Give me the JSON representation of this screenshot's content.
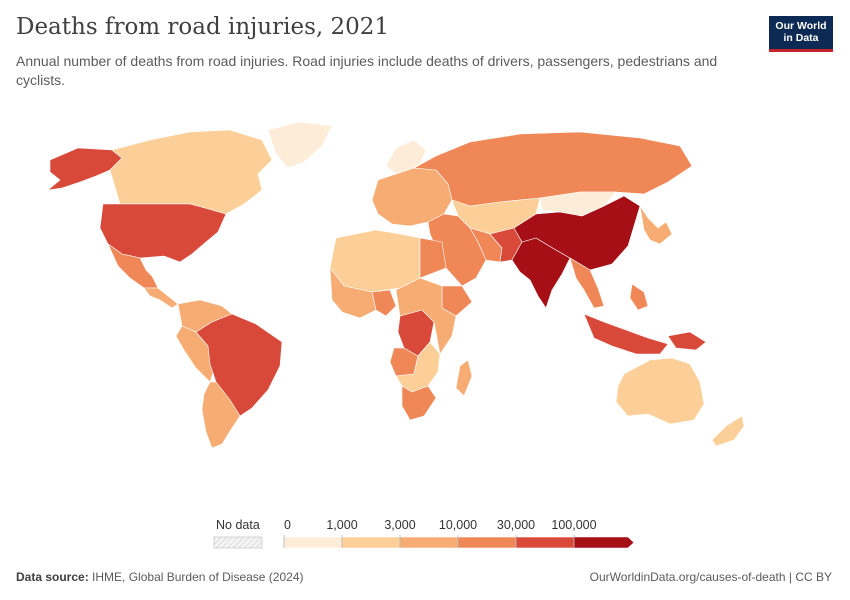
{
  "header": {
    "title": "Deaths from road injuries, 2021",
    "subtitle": "Annual number of deaths from road injuries. Road injuries include deaths of drivers, passengers, pedestrians and cyclists.",
    "logo_line1": "Our World",
    "logo_line2": "in Data"
  },
  "legend": {
    "no_data_label": "No data",
    "no_data_color": "#f2f2f2",
    "bins": [
      {
        "label": "0",
        "color": "#fdecd7"
      },
      {
        "label": "1,000",
        "color": "#fbcf97"
      },
      {
        "label": "3,000",
        "color": "#f6ac72"
      },
      {
        "label": "10,000",
        "color": "#f08757"
      },
      {
        "label": "30,000",
        "color": "#d9493a"
      },
      {
        "label": "100,000",
        "color": "#a50f15"
      }
    ]
  },
  "regions": [
    {
      "name": "Alaska",
      "color": "#d9493a"
    },
    {
      "name": "Canada",
      "color": "#fbcf97"
    },
    {
      "name": "Greenland",
      "color": "#fdecd7"
    },
    {
      "name": "United States",
      "color": "#d9493a"
    },
    {
      "name": "Mexico",
      "color": "#f08757"
    },
    {
      "name": "Central America",
      "color": "#f6ac72"
    },
    {
      "name": "Colombia Venezuela",
      "color": "#f6ac72"
    },
    {
      "name": "Peru Bolivia",
      "color": "#f6ac72"
    },
    {
      "name": "Brazil",
      "color": "#d9493a"
    },
    {
      "name": "Argentina Chile",
      "color": "#f6ac72"
    },
    {
      "name": "Europe",
      "color": "#f6ac72"
    },
    {
      "name": "Scandinavia",
      "color": "#fdecd7"
    },
    {
      "name": "Russia",
      "color": "#f08757"
    },
    {
      "name": "Kazakhstan Central Asia",
      "color": "#fbcf97"
    },
    {
      "name": "Turkey Middle East",
      "color": "#f08757"
    },
    {
      "name": "Iran",
      "color": "#f08757"
    },
    {
      "name": "Pakistan",
      "color": "#d9493a"
    },
    {
      "name": "India",
      "color": "#a50f15"
    },
    {
      "name": "China",
      "color": "#a50f15"
    },
    {
      "name": "Mongolia",
      "color": "#fdecd7"
    },
    {
      "name": "Southeast Asia",
      "color": "#f08757"
    },
    {
      "name": "Japan Korea",
      "color": "#f6ac72"
    },
    {
      "name": "Indonesia",
      "color": "#d9493a"
    },
    {
      "name": "Philippines",
      "color": "#f08757"
    },
    {
      "name": "Australia",
      "color": "#fbcf97"
    },
    {
      "name": "New Zealand",
      "color": "#fbcf97"
    },
    {
      "name": "Papua New Guinea",
      "color": "#d9493a"
    },
    {
      "name": "North Africa",
      "color": "#fbcf97"
    },
    {
      "name": "Egypt",
      "color": "#f08757"
    },
    {
      "name": "West Africa",
      "color": "#f6ac72"
    },
    {
      "name": "Nigeria",
      "color": "#f08757"
    },
    {
      "name": "Ethiopia",
      "color": "#f08757"
    },
    {
      "name": "DR Congo",
      "color": "#d9493a"
    },
    {
      "name": "Angola",
      "color": "#f08757"
    },
    {
      "name": "East Africa",
      "color": "#f6ac72"
    },
    {
      "name": "Southern Africa",
      "color": "#fbcf97"
    },
    {
      "name": "South Africa",
      "color": "#f08757"
    },
    {
      "name": "Madagascar",
      "color": "#f6ac72"
    }
  ],
  "footer": {
    "source_label": "Data source:",
    "source_text": "IHME, Global Burden of Disease (2024)",
    "url": "OurWorldinData.org/causes-of-death | CC BY"
  }
}
